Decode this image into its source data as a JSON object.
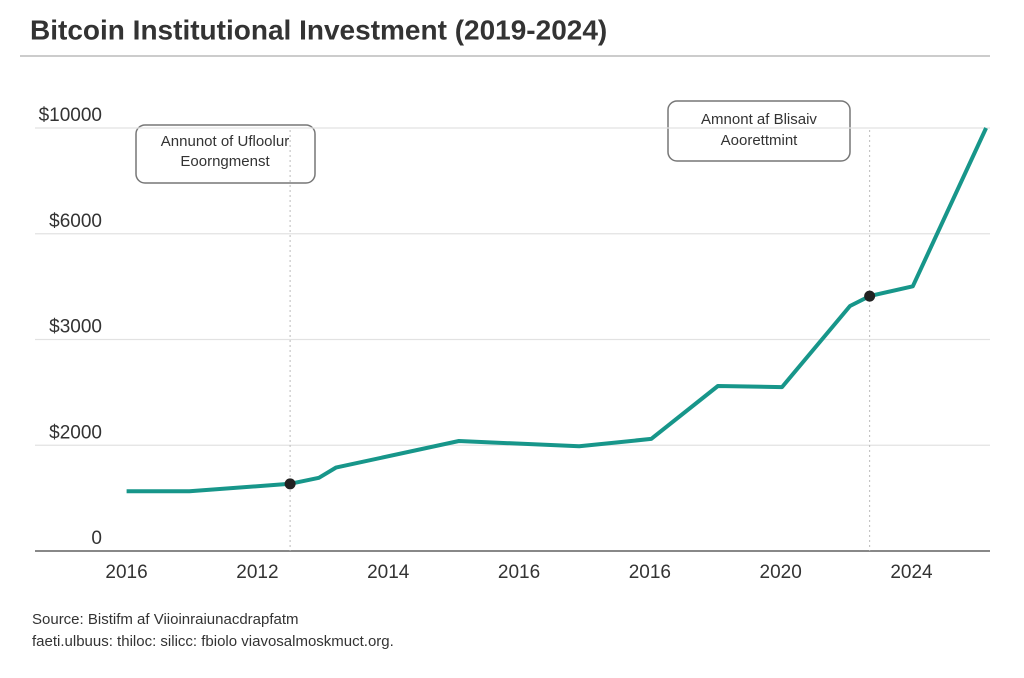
{
  "chart_data": {
    "type": "line",
    "title": "Bitcoin Institutional Investment (2019-2024)",
    "x": [
      0,
      0.48,
      1.25,
      1.47,
      1.6,
      2.54,
      3.46,
      4.01,
      4.52,
      5.01,
      5.53,
      5.68,
      6.01,
      6.57
    ],
    "series": [
      {
        "color": "#17968a",
        "values": [
          1130,
          1130,
          1270,
          1385,
          1577,
          2040,
          1980,
          2060,
          2560,
          2550,
          3950,
          4230,
          4510,
          10000
        ]
      }
    ],
    "marker_indices": [
      2,
      11
    ],
    "xlim": [
      -0.7,
      6.6
    ],
    "xticks": [
      {
        "value": 0,
        "label": "2016"
      },
      {
        "value": 1,
        "label": "2012"
      },
      {
        "value": 2,
        "label": "2014"
      },
      {
        "value": 3,
        "label": "2016"
      },
      {
        "value": 4,
        "label": "2016"
      },
      {
        "value": 5,
        "label": "2020"
      },
      {
        "value": 6,
        "label": "2024"
      }
    ],
    "ylim": [
      0,
      10000
    ],
    "yticks": [
      0,
      {
        "value": 2000,
        "label": "$2000"
      },
      {
        "value": 3000,
        "label": "$3000"
      },
      {
        "value": 6000,
        "label": "$6000"
      },
      {
        "value": 10000,
        "label": "$10000"
      }
    ],
    "grid": true,
    "annotations": [
      {
        "lines": [
          "Annunot of Ufloolur",
          "Eoorngmenst"
        ]
      },
      {
        "lines": [
          "Amnont af Blisaiv",
          "Aoorettmint"
        ]
      }
    ],
    "source": [
      "Source: Bistifm af Viioinraiunacdrapfatm",
      "faeti.ulbuus: thiloc: silicc: fbiolo viavosalmoskmuct.org."
    ]
  }
}
